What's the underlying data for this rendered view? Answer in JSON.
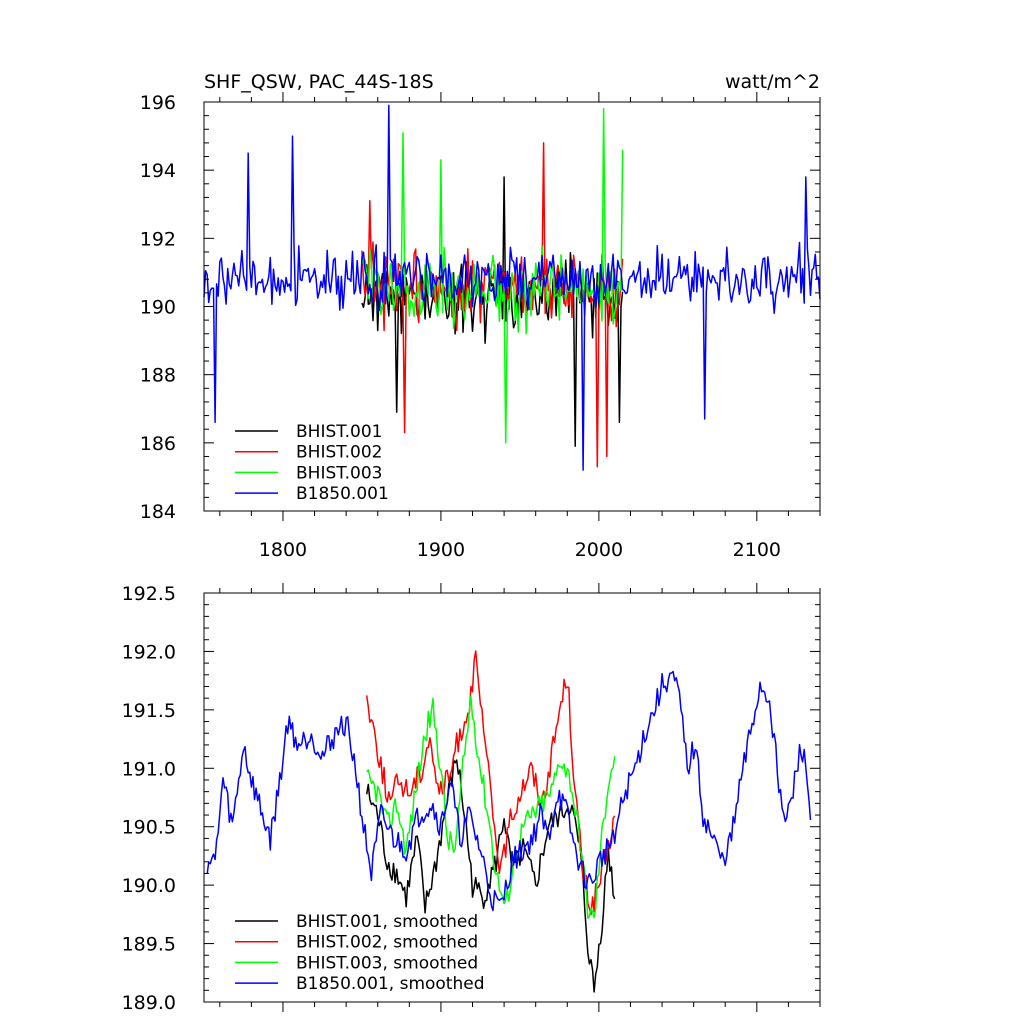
{
  "chart_data": [
    {
      "type": "line",
      "title": "SHF_QSW, PAC_44S-18S",
      "units": "watt/m^2",
      "xlim": [
        1750,
        2140
      ],
      "ylim": [
        184,
        196
      ],
      "xticks": [
        1800,
        1900,
        2000,
        2100
      ],
      "yticks": [
        184,
        186,
        188,
        190,
        192,
        194,
        196
      ],
      "ytick_labels": [
        "184",
        "186",
        "188",
        "190",
        "192",
        "194",
        "196"
      ],
      "show_x_labels": true,
      "legend_position": "bottom-left",
      "series": [
        {
          "name": "BHIST.001",
          "color": "#000000",
          "x_start": 1850,
          "x_end": 2015,
          "mean": 190.3,
          "amplitude": 1.6,
          "seed": 11,
          "peaks": [
            [
              1940,
              193.8
            ],
            [
              1872,
              186.9
            ],
            [
              1985,
              185.9
            ],
            [
              2013,
              186.6
            ]
          ]
        },
        {
          "name": "BHIST.002",
          "color": "#ff0000",
          "x_start": 1850,
          "x_end": 2015,
          "mean": 190.6,
          "amplitude": 1.7,
          "seed": 23,
          "peaks": [
            [
              1855,
              193.1
            ],
            [
              1877,
              186.3
            ],
            [
              1965,
              194.8
            ],
            [
              1999,
              185.3
            ],
            [
              2005,
              185.6
            ]
          ]
        },
        {
          "name": "BHIST.003",
          "color": "#00ff00",
          "x_start": 1850,
          "x_end": 2015,
          "mean": 190.5,
          "amplitude": 1.7,
          "seed": 37,
          "peaks": [
            [
              1876,
              195.1
            ],
            [
              1900,
              194.3
            ],
            [
              1941,
              186.0
            ],
            [
              2003,
              195.8
            ],
            [
              2015,
              194.6
            ]
          ]
        },
        {
          "name": "B1850.001",
          "color": "#0000ff",
          "x_start": 1750,
          "x_end": 2140,
          "mean": 190.8,
          "amplitude": 1.3,
          "seed": 53,
          "peaks": [
            [
              1757,
              186.6
            ],
            [
              1778,
              194.5
            ],
            [
              1806,
              195.0
            ],
            [
              1867,
              195.9
            ],
            [
              1990,
              185.2
            ],
            [
              2067,
              186.7
            ],
            [
              2131,
              193.8
            ]
          ]
        }
      ]
    },
    {
      "type": "line",
      "title": "",
      "units": "",
      "xlim": [
        1750,
        2140
      ],
      "ylim": [
        189.0,
        192.5
      ],
      "xticks": [
        1800,
        1900,
        2000,
        2100
      ],
      "yticks": [
        189.0,
        189.5,
        190.0,
        190.5,
        191.0,
        191.5,
        192.0,
        192.5
      ],
      "ytick_labels": [
        "189.0",
        "189.5",
        "190.0",
        "190.5",
        "191.0",
        "191.5",
        "192.0",
        "192.5"
      ],
      "show_x_labels": false,
      "legend_position": "bottom-left",
      "series": [
        {
          "name": "BHIST.001, smoothed",
          "color": "#000000",
          "x_start": 1853,
          "x_end": 2010,
          "keys": [
            [
              1853,
              190.8
            ],
            [
              1860,
              190.6
            ],
            [
              1866,
              190.2
            ],
            [
              1872,
              190.1
            ],
            [
              1878,
              189.9
            ],
            [
              1885,
              190.4
            ],
            [
              1890,
              189.8
            ],
            [
              1897,
              190.2
            ],
            [
              1905,
              190.8
            ],
            [
              1910,
              191.1
            ],
            [
              1915,
              190.6
            ],
            [
              1920,
              190.0
            ],
            [
              1927,
              189.9
            ],
            [
              1935,
              190.2
            ],
            [
              1940,
              190.6
            ],
            [
              1945,
              190.1
            ],
            [
              1952,
              190.3
            ],
            [
              1960,
              190.0
            ],
            [
              1968,
              190.5
            ],
            [
              1975,
              190.6
            ],
            [
              1982,
              190.7
            ],
            [
              1988,
              190.3
            ],
            [
              1993,
              189.5
            ],
            [
              1997,
              189.1
            ],
            [
              2002,
              189.7
            ],
            [
              2006,
              190.3
            ],
            [
              2010,
              189.9
            ]
          ]
        },
        {
          "name": "BHIST.002, smoothed",
          "color": "#ff0000",
          "x_start": 1853,
          "x_end": 2010,
          "keys": [
            [
              1853,
              191.6
            ],
            [
              1858,
              191.3
            ],
            [
              1864,
              190.9
            ],
            [
              1868,
              190.7
            ],
            [
              1873,
              190.9
            ],
            [
              1880,
              190.8
            ],
            [
              1888,
              191.0
            ],
            [
              1893,
              191.3
            ],
            [
              1898,
              190.8
            ],
            [
              1905,
              190.9
            ],
            [
              1910,
              191.2
            ],
            [
              1917,
              191.5
            ],
            [
              1922,
              191.9
            ],
            [
              1928,
              191.2
            ],
            [
              1933,
              190.6
            ],
            [
              1938,
              190.1
            ],
            [
              1943,
              190.5
            ],
            [
              1950,
              190.8
            ],
            [
              1957,
              191.0
            ],
            [
              1964,
              190.7
            ],
            [
              1970,
              191.1
            ],
            [
              1975,
              191.5
            ],
            [
              1980,
              191.8
            ],
            [
              1985,
              190.8
            ],
            [
              1990,
              190.1
            ],
            [
              1995,
              189.8
            ],
            [
              2000,
              190.0
            ],
            [
              2006,
              190.3
            ],
            [
              2010,
              190.6
            ]
          ]
        },
        {
          "name": "BHIST.003, smoothed",
          "color": "#00ff00",
          "x_start": 1853,
          "x_end": 2010,
          "keys": [
            [
              1853,
              190.9
            ],
            [
              1860,
              190.8
            ],
            [
              1866,
              190.5
            ],
            [
              1872,
              190.7
            ],
            [
              1878,
              190.3
            ],
            [
              1884,
              190.8
            ],
            [
              1890,
              191.3
            ],
            [
              1895,
              191.5
            ],
            [
              1900,
              191.0
            ],
            [
              1904,
              190.4
            ],
            [
              1909,
              190.3
            ],
            [
              1914,
              191.0
            ],
            [
              1919,
              191.6
            ],
            [
              1925,
              191.0
            ],
            [
              1930,
              190.6
            ],
            [
              1935,
              190.1
            ],
            [
              1941,
              189.8
            ],
            [
              1946,
              190.2
            ],
            [
              1952,
              190.5
            ],
            [
              1958,
              190.6
            ],
            [
              1964,
              190.7
            ],
            [
              1970,
              190.8
            ],
            [
              1976,
              191.1
            ],
            [
              1982,
              190.9
            ],
            [
              1988,
              190.4
            ],
            [
              1993,
              189.8
            ],
            [
              1997,
              189.7
            ],
            [
              2001,
              190.3
            ],
            [
              2006,
              190.9
            ],
            [
              2010,
              191.1
            ]
          ]
        },
        {
          "name": "B1850.001, smoothed",
          "color": "#0000ff",
          "x_start": 1752,
          "x_end": 2134,
          "keys": [
            [
              1752,
              190.2
            ],
            [
              1757,
              190.2
            ],
            [
              1762,
              190.9
            ],
            [
              1768,
              190.5
            ],
            [
              1775,
              191.2
            ],
            [
              1780,
              190.9
            ],
            [
              1787,
              190.6
            ],
            [
              1792,
              190.4
            ],
            [
              1797,
              190.8
            ],
            [
              1803,
              191.4
            ],
            [
              1810,
              191.2
            ],
            [
              1818,
              191.3
            ],
            [
              1825,
              191.1
            ],
            [
              1833,
              191.3
            ],
            [
              1840,
              191.4
            ],
            [
              1846,
              191.0
            ],
            [
              1851,
              190.5
            ],
            [
              1856,
              190.1
            ],
            [
              1862,
              190.6
            ],
            [
              1870,
              190.4
            ],
            [
              1878,
              190.3
            ],
            [
              1886,
              190.6
            ],
            [
              1894,
              190.7
            ],
            [
              1900,
              190.5
            ],
            [
              1906,
              190.9
            ],
            [
              1912,
              190.4
            ],
            [
              1918,
              190.6
            ],
            [
              1925,
              190.3
            ],
            [
              1932,
              189.9
            ],
            [
              1938,
              189.8
            ],
            [
              1945,
              190.2
            ],
            [
              1952,
              190.3
            ],
            [
              1958,
              190.4
            ],
            [
              1963,
              190.6
            ],
            [
              1968,
              190.4
            ],
            [
              1974,
              190.8
            ],
            [
              1980,
              190.6
            ],
            [
              1985,
              190.3
            ],
            [
              1990,
              190.1
            ],
            [
              1995,
              190.0
            ],
            [
              2000,
              190.2
            ],
            [
              2005,
              190.3
            ],
            [
              2011,
              190.5
            ],
            [
              2017,
              190.8
            ],
            [
              2023,
              191.0
            ],
            [
              2029,
              191.3
            ],
            [
              2035,
              191.5
            ],
            [
              2040,
              191.7
            ],
            [
              2046,
              191.8
            ],
            [
              2051,
              191.6
            ],
            [
              2056,
              191.0
            ],
            [
              2061,
              191.2
            ],
            [
              2066,
              190.6
            ],
            [
              2072,
              190.4
            ],
            [
              2078,
              190.2
            ],
            [
              2084,
              190.4
            ],
            [
              2090,
              190.9
            ],
            [
              2096,
              191.3
            ],
            [
              2102,
              191.7
            ],
            [
              2108,
              191.6
            ],
            [
              2113,
              191.0
            ],
            [
              2118,
              190.5
            ],
            [
              2123,
              190.8
            ],
            [
              2128,
              191.2
            ],
            [
              2131,
              191.0
            ],
            [
              2134,
              190.6
            ]
          ]
        }
      ]
    }
  ]
}
